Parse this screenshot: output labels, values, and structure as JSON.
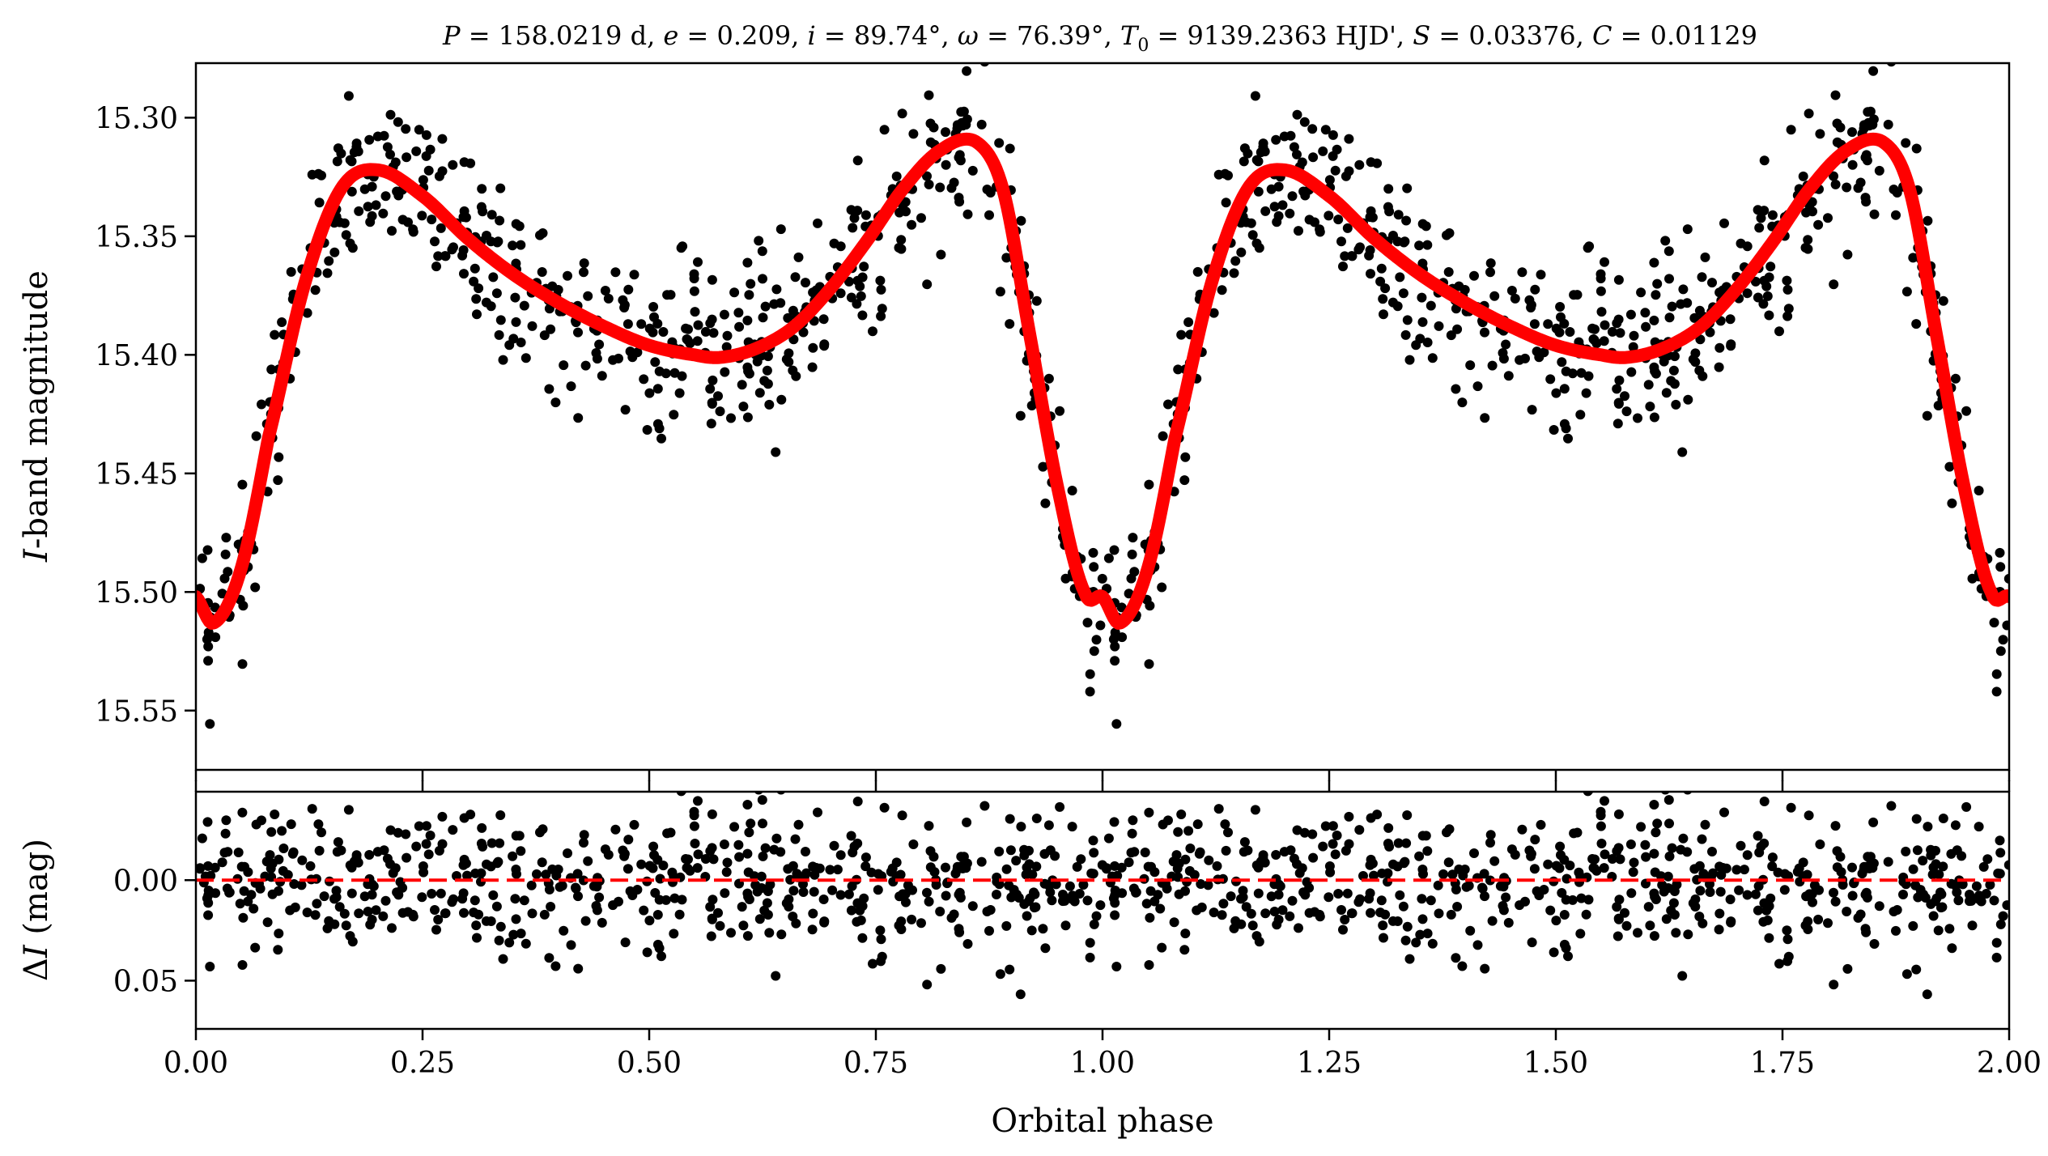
{
  "chart_data": [
    {
      "type": "scatter",
      "panel": "light-curve",
      "title": "P = 158.0219 d, e = 0.209, i = 89.74°, ω = 76.39°, T0 = 9139.2363 HJD', S = 0.03376, C = 0.01129",
      "title_parts": {
        "P_sym": "P",
        "P_val": " = 158.0219 d, ",
        "e_sym": "e",
        "e_val": " = 0.209, ",
        "i_sym": "i",
        "i_val": " = 89.74°, ",
        "w_sym": "ω",
        "w_val": " = 76.39°, ",
        "T_sym": "T",
        "T_sub": "0",
        "T_val": " = 9139.2363 HJD', ",
        "S_sym": "S",
        "S_val": " = 0.03376, ",
        "C_sym": "C",
        "C_val": " = 0.01129"
      },
      "xlabel": "Orbital phase",
      "ylabel": "I-band magnitude",
      "ylabel_parts": {
        "italic": "I",
        "rest": "-band magnitude"
      },
      "xlim": [
        0.0,
        2.0
      ],
      "ylim": [
        15.575,
        15.277
      ],
      "y_inverted": true,
      "yticks": [
        "15.30",
        "15.35",
        "15.40",
        "15.45",
        "15.50",
        "15.55"
      ],
      "ytick_values": [
        15.3,
        15.35,
        15.4,
        15.45,
        15.5,
        15.55
      ],
      "xtick_values": [
        0.0,
        0.25,
        0.5,
        0.75,
        1.0,
        1.25,
        1.5,
        1.75,
        2.0
      ],
      "series": [
        {
          "name": "observations",
          "marker": "circle",
          "color": "#000000",
          "n_points_per_cycle": 560,
          "scatter_sigma_mag": 0.017,
          "description": "phase-folded I-band photometry, repeated for phases 0-2"
        },
        {
          "name": "model",
          "style": "line",
          "color": "#ff0000",
          "phase": [
            0.0,
            0.02,
            0.05,
            0.08,
            0.12,
            0.16,
            0.2,
            0.25,
            0.3,
            0.35,
            0.4,
            0.45,
            0.5,
            0.55,
            0.58,
            0.62,
            0.66,
            0.7,
            0.74,
            0.78,
            0.82,
            0.86,
            0.89,
            0.92,
            0.95,
            0.98,
            1.0
          ],
          "magnitude": [
            15.502,
            15.513,
            15.49,
            15.435,
            15.37,
            15.33,
            15.322,
            15.333,
            15.351,
            15.366,
            15.378,
            15.388,
            15.396,
            15.4,
            15.401,
            15.397,
            15.388,
            15.372,
            15.352,
            15.33,
            15.314,
            15.31,
            15.33,
            15.392,
            15.455,
            15.5,
            15.502
          ]
        }
      ]
    },
    {
      "type": "scatter",
      "panel": "residuals",
      "xlabel": "Orbital phase",
      "ylabel": "ΔI (mag)",
      "ylabel_parts": {
        "delta": "Δ",
        "italic": "I",
        "rest": " (mag)"
      },
      "xlim": [
        0.0,
        2.0
      ],
      "ylim": [
        0.074,
        -0.044
      ],
      "y_inverted": true,
      "yticks": [
        "0.00",
        "0.05"
      ],
      "ytick_values": [
        0.0,
        0.05
      ],
      "xticks": [
        "0.00",
        "0.25",
        "0.50",
        "0.75",
        "1.00",
        "1.25",
        "1.50",
        "1.75",
        "2.00"
      ],
      "xtick_values": [
        0.0,
        0.25,
        0.5,
        0.75,
        1.0,
        1.25,
        1.5,
        1.75,
        2.0
      ],
      "series": [
        {
          "name": "residuals",
          "marker": "circle",
          "color": "#000000",
          "scatter_sigma_mag": 0.017
        },
        {
          "name": "zero-line",
          "style": "dashed",
          "color": "#ff0000",
          "y": 0.0
        }
      ]
    }
  ]
}
